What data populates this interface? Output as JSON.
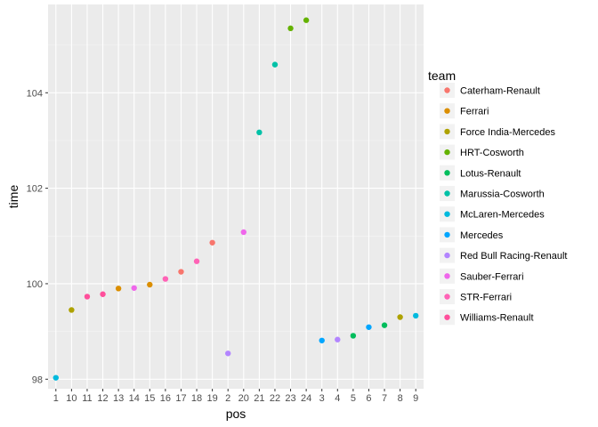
{
  "chart_data": {
    "type": "scatter",
    "xlabel": "pos",
    "ylabel": "time",
    "x_categories": [
      "1",
      "10",
      "11",
      "12",
      "13",
      "14",
      "15",
      "16",
      "17",
      "18",
      "19",
      "2",
      "20",
      "21",
      "22",
      "23",
      "24",
      "3",
      "4",
      "5",
      "6",
      "7",
      "8",
      "9"
    ],
    "y_ticks": [
      98,
      100,
      102,
      104
    ],
    "ylim": [
      97.8,
      105.85
    ],
    "grid": true,
    "legend": {
      "title": "team",
      "placement": "right"
    },
    "series": [
      {
        "name": "Caterham-Renault",
        "color": "#F8766D",
        "points": [
          {
            "x": "17",
            "y": 100.25
          },
          {
            "x": "19",
            "y": 100.86
          }
        ]
      },
      {
        "name": "Ferrari",
        "color": "#DB8E00",
        "points": [
          {
            "x": "13",
            "y": 99.9
          },
          {
            "x": "15",
            "y": 99.98
          }
        ]
      },
      {
        "name": "Force India-Mercedes",
        "color": "#AEA200",
        "points": [
          {
            "x": "10",
            "y": 99.45
          },
          {
            "x": "8",
            "y": 99.3
          }
        ]
      },
      {
        "name": "HRT-Cosworth",
        "color": "#64B200",
        "points": [
          {
            "x": "23",
            "y": 105.35
          },
          {
            "x": "24",
            "y": 105.52
          }
        ]
      },
      {
        "name": "Lotus-Renault",
        "color": "#00BD5C",
        "points": [
          {
            "x": "5",
            "y": 98.91
          },
          {
            "x": "7",
            "y": 99.13
          }
        ]
      },
      {
        "name": "Marussia-Cosworth",
        "color": "#00C1A7",
        "points": [
          {
            "x": "21",
            "y": 103.17
          },
          {
            "x": "22",
            "y": 104.59
          }
        ]
      },
      {
        "name": "McLaren-Mercedes",
        "color": "#00BADE",
        "points": [
          {
            "x": "1",
            "y": 98.03
          },
          {
            "x": "9",
            "y": 99.33
          }
        ]
      },
      {
        "name": "Mercedes",
        "color": "#00A6FF",
        "points": [
          {
            "x": "3",
            "y": 98.81
          },
          {
            "x": "6",
            "y": 99.09
          }
        ]
      },
      {
        "name": "Red Bull Racing-Renault",
        "color": "#B385FF",
        "points": [
          {
            "x": "2",
            "y": 98.54
          },
          {
            "x": "4",
            "y": 98.83
          }
        ]
      },
      {
        "name": "Sauber-Ferrari",
        "color": "#EF67EB",
        "points": [
          {
            "x": "14",
            "y": 99.91
          },
          {
            "x": "20",
            "y": 101.08
          }
        ]
      },
      {
        "name": "STR-Ferrari",
        "color": "#FF63B6",
        "points": [
          {
            "x": "16",
            "y": 100.1
          },
          {
            "x": "18",
            "y": 100.47
          }
        ]
      },
      {
        "name": "Williams-Renault",
        "color": "#FF4F9B",
        "points": [
          {
            "x": "11",
            "y": 99.73
          },
          {
            "x": "12",
            "y": 99.78
          }
        ]
      }
    ]
  }
}
